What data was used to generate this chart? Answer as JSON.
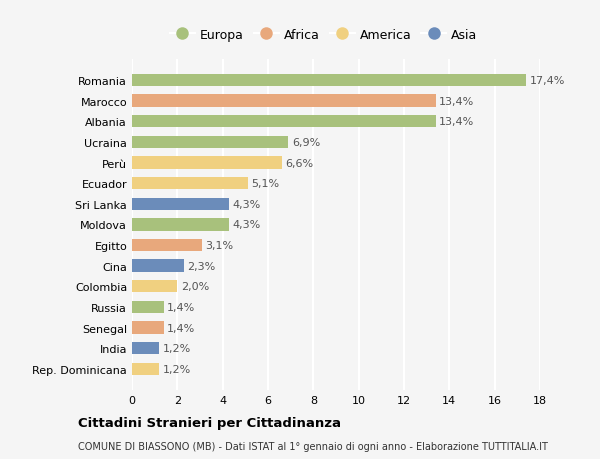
{
  "countries": [
    "Romania",
    "Marocco",
    "Albania",
    "Ucraina",
    "Perù",
    "Ecuador",
    "Sri Lanka",
    "Moldova",
    "Egitto",
    "Cina",
    "Colombia",
    "Russia",
    "Senegal",
    "India",
    "Rep. Dominicana"
  ],
  "values": [
    17.4,
    13.4,
    13.4,
    6.9,
    6.6,
    5.1,
    4.3,
    4.3,
    3.1,
    2.3,
    2.0,
    1.4,
    1.4,
    1.2,
    1.2
  ],
  "labels": [
    "17,4%",
    "13,4%",
    "13,4%",
    "6,9%",
    "6,6%",
    "5,1%",
    "4,3%",
    "4,3%",
    "3,1%",
    "2,3%",
    "2,0%",
    "1,4%",
    "1,4%",
    "1,2%",
    "1,2%"
  ],
  "continents": [
    "Europa",
    "Africa",
    "Europa",
    "Europa",
    "America",
    "America",
    "Asia",
    "Europa",
    "Africa",
    "Asia",
    "America",
    "Europa",
    "Africa",
    "Asia",
    "America"
  ],
  "colors": {
    "Europa": "#a8c17c",
    "Africa": "#e8a87c",
    "America": "#f0d080",
    "Asia": "#6b8cba"
  },
  "legend_order": [
    "Europa",
    "Africa",
    "America",
    "Asia"
  ],
  "xlim": [
    0,
    18
  ],
  "xticks": [
    0,
    2,
    4,
    6,
    8,
    10,
    12,
    14,
    16,
    18
  ],
  "title": "Cittadini Stranieri per Cittadinanza",
  "subtitle": "COMUNE DI BIASSONO (MB) - Dati ISTAT al 1° gennaio di ogni anno - Elaborazione TUTTITALIA.IT",
  "bg_color": "#f5f5f5",
  "bar_height": 0.6,
  "grid_color": "#ffffff",
  "label_fontsize": 8,
  "tick_fontsize": 8,
  "ytick_fontsize": 8
}
